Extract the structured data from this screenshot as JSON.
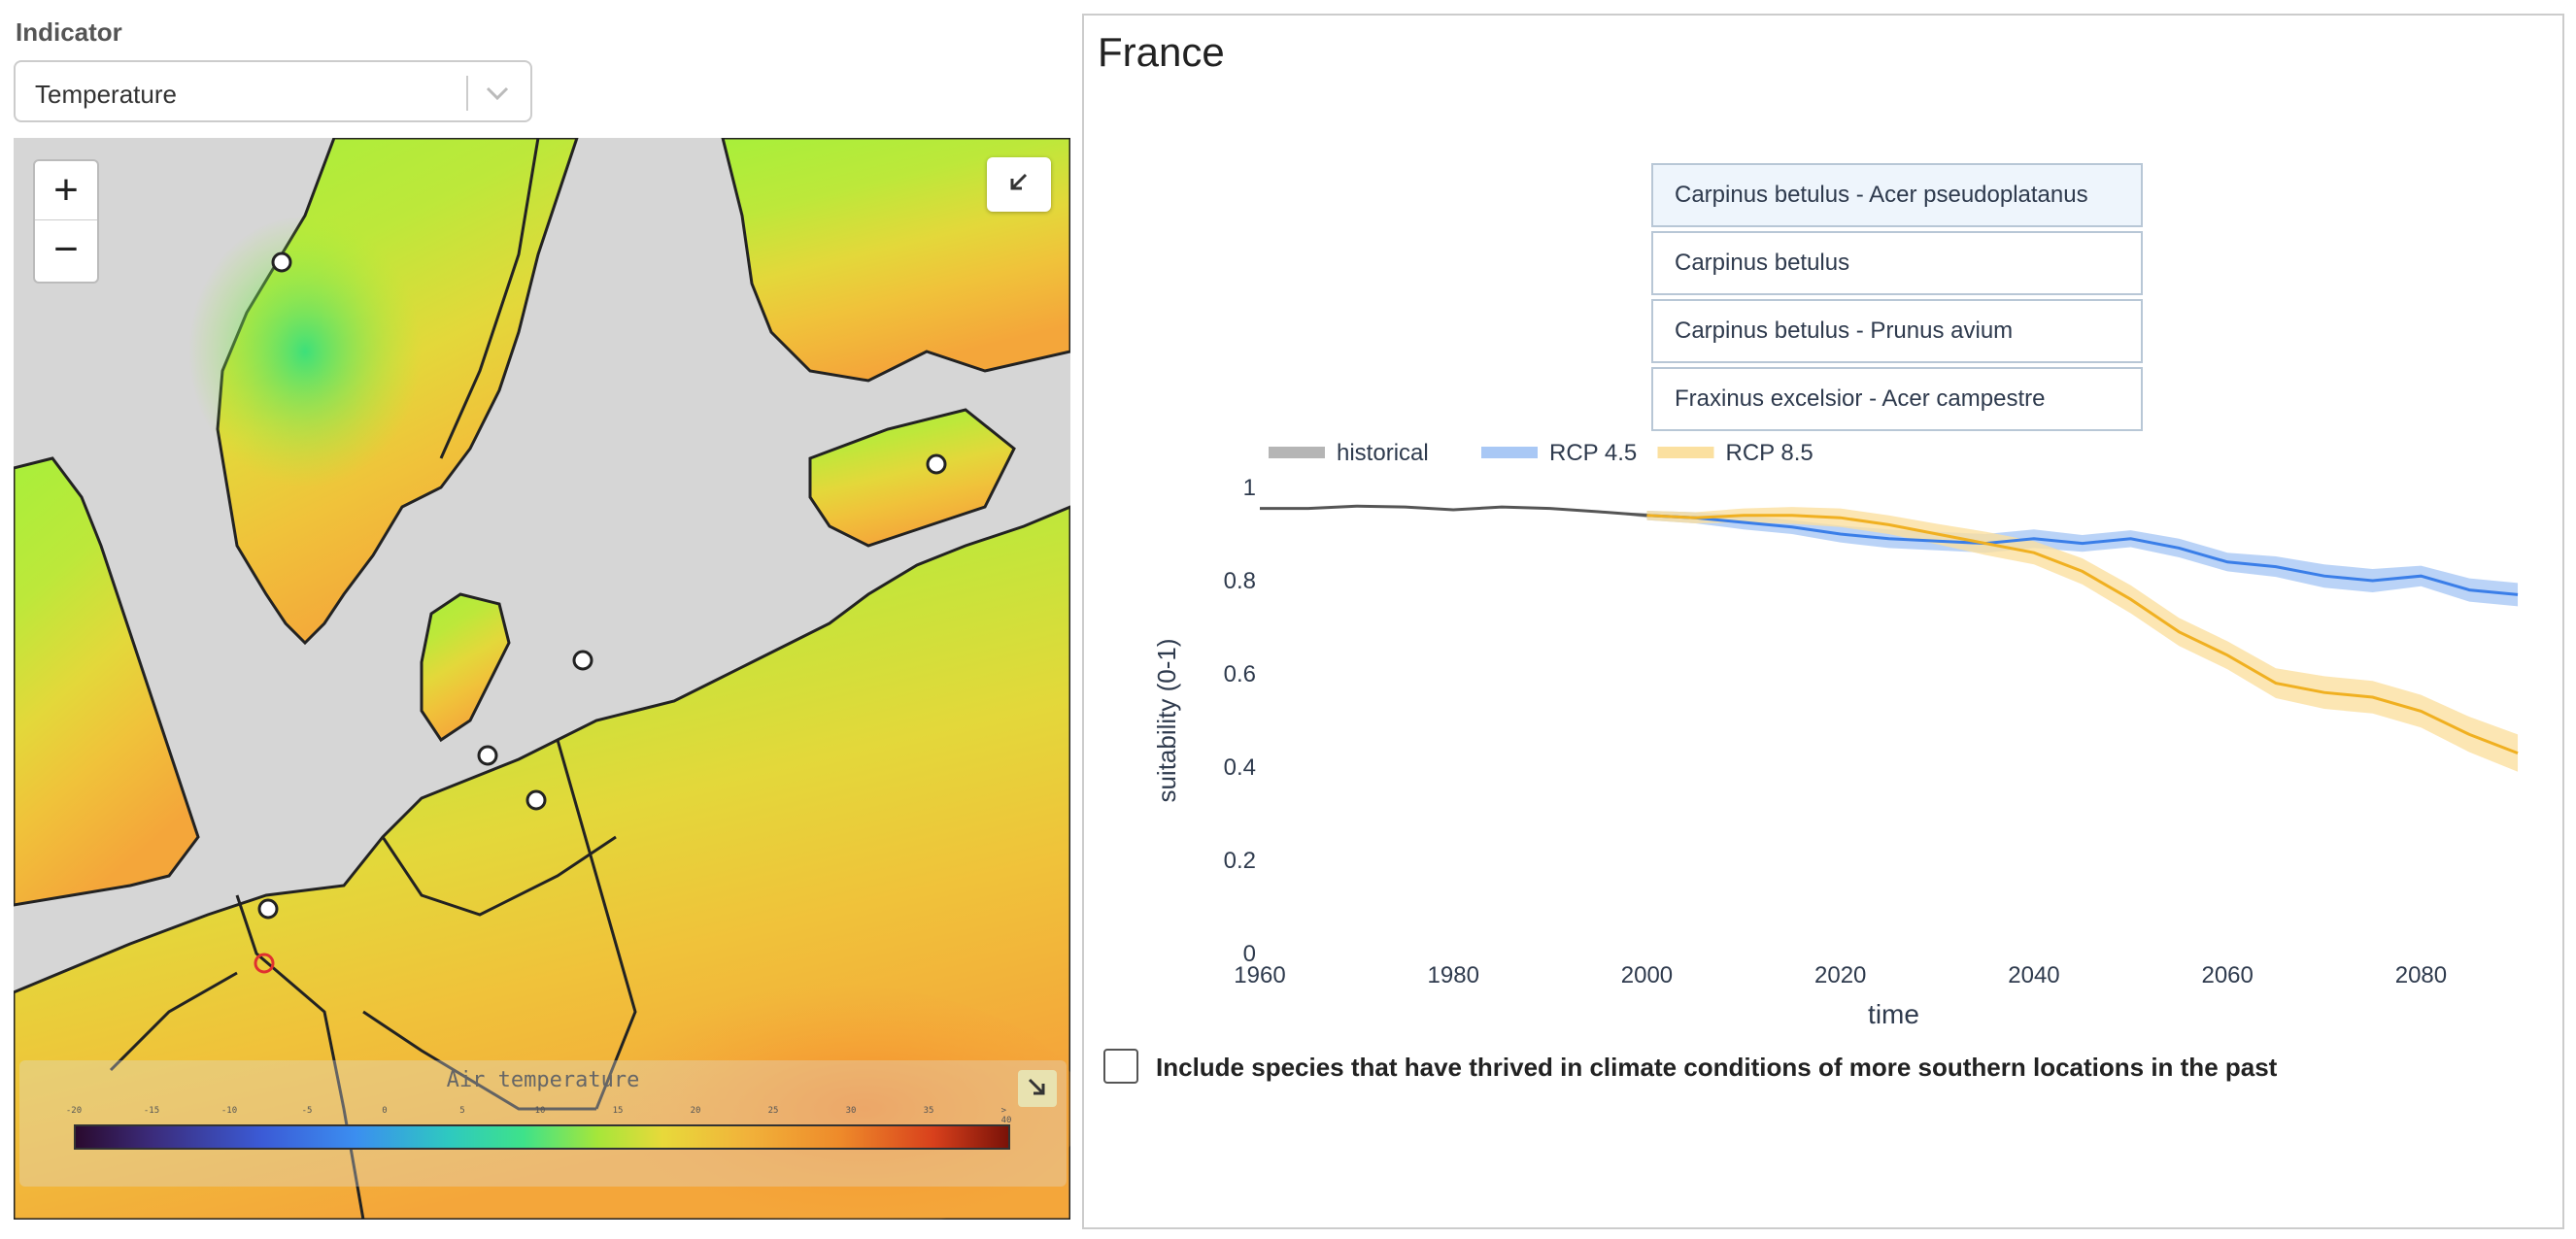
{
  "indicator": {
    "label": "Indicator",
    "selected": "Temperature"
  },
  "map": {
    "zoom_in": "+",
    "zoom_out": "−",
    "legend_title": "Air temperature",
    "legend_ticks": [
      "-20",
      "-15",
      "-10",
      "-5",
      "0",
      "5",
      "10",
      "15",
      "20",
      "25",
      "30",
      "35",
      "> 40"
    ]
  },
  "chart": {
    "title": "France",
    "species": [
      "Carpinus betulus - Acer pseudoplatanus",
      "Carpinus betulus",
      "Carpinus betulus - Prunus avium",
      "Fraxinus excelsior - Acer campestre"
    ]
  },
  "chart_data": {
    "type": "line",
    "xlabel": "time",
    "ylabel": "suitability (0-1)",
    "xlim": [
      1960,
      2091
    ],
    "ylim": [
      0,
      1
    ],
    "xticks": [
      1960,
      1980,
      2000,
      2020,
      2040,
      2060,
      2080
    ],
    "yticks": [
      0,
      0.2,
      0.4,
      0.6,
      0.8,
      1
    ],
    "legend": "top-left",
    "series": [
      {
        "name": "historical",
        "color": "#555555",
        "band_color": "#b5b5b5",
        "x": [
          1960,
          1965,
          1970,
          1975,
          1980,
          1985,
          1990,
          1995,
          2000
        ],
        "y": [
          0.955,
          0.955,
          0.96,
          0.958,
          0.952,
          0.958,
          0.955,
          0.948,
          0.94
        ],
        "spread": [
          0,
          0,
          0,
          0,
          0,
          0,
          0,
          0,
          0.005
        ]
      },
      {
        "name": "RCP 4.5",
        "color": "#3a7ee8",
        "band_color": "#a9c8f5",
        "x": [
          2000,
          2005,
          2010,
          2015,
          2020,
          2025,
          2030,
          2035,
          2040,
          2045,
          2050,
          2055,
          2060,
          2065,
          2070,
          2075,
          2080,
          2085,
          2090
        ],
        "y": [
          0.94,
          0.935,
          0.925,
          0.915,
          0.9,
          0.89,
          0.885,
          0.88,
          0.89,
          0.88,
          0.89,
          0.87,
          0.84,
          0.83,
          0.81,
          0.8,
          0.81,
          0.78,
          0.77
        ],
        "spread": [
          0.01,
          0.012,
          0.015,
          0.015,
          0.018,
          0.02,
          0.02,
          0.02,
          0.02,
          0.018,
          0.018,
          0.02,
          0.02,
          0.022,
          0.025,
          0.025,
          0.022,
          0.025,
          0.025
        ]
      },
      {
        "name": "RCP 8.5",
        "color": "#f0b021",
        "band_color": "#fbe0a0",
        "x": [
          2000,
          2005,
          2010,
          2015,
          2020,
          2025,
          2030,
          2035,
          2040,
          2045,
          2050,
          2055,
          2060,
          2065,
          2070,
          2075,
          2080,
          2085,
          2090
        ],
        "y": [
          0.94,
          0.935,
          0.94,
          0.94,
          0.935,
          0.92,
          0.9,
          0.88,
          0.86,
          0.82,
          0.76,
          0.69,
          0.64,
          0.58,
          0.56,
          0.55,
          0.52,
          0.47,
          0.43
        ],
        "spread": [
          0.01,
          0.012,
          0.015,
          0.018,
          0.02,
          0.02,
          0.022,
          0.025,
          0.025,
          0.028,
          0.03,
          0.03,
          0.03,
          0.032,
          0.035,
          0.035,
          0.035,
          0.038,
          0.04
        ]
      }
    ]
  },
  "southern_checkbox": {
    "label": "Include species that have thrived in climate conditions of more southern locations in the past",
    "checked": false
  }
}
